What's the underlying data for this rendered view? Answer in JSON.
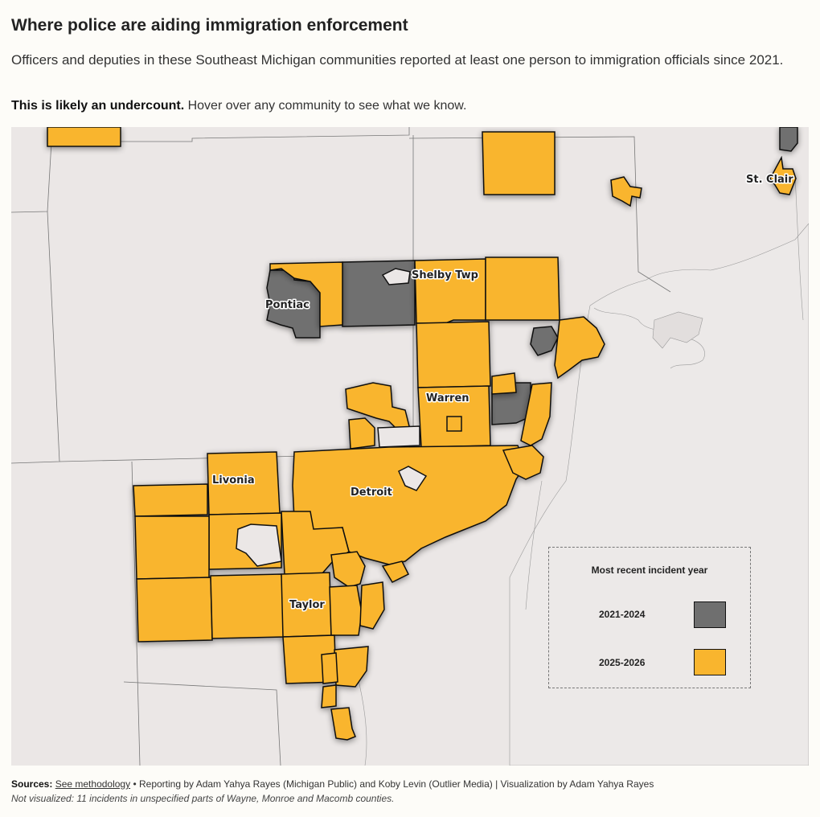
{
  "header": {
    "title": "Where police are aiding immigration enforcement",
    "subtitle": "Officers and deputies in these Southeast Michigan communities reported at least one person to immigration officials since 2021.",
    "note_bold": "This is likely an undercount.",
    "note_rest": " Hover over any community to see what we know."
  },
  "map": {
    "labels": {
      "st_clair": "St. Clair",
      "shelby_twp": "Shelby Twp",
      "pontiac": "Pontiac",
      "warren": "Warren",
      "livonia": "Livonia",
      "detroit": "Detroit",
      "taylor": "Taylor"
    },
    "colors": {
      "land": "#ebe7e6",
      "recent": "#f9b52e",
      "older": "#6f6f6f",
      "border": "#111111"
    }
  },
  "legend": {
    "title": "Most recent incident year",
    "items": [
      {
        "label": "2021-2024",
        "color": "#6f6f6f"
      },
      {
        "label": "2025-2026",
        "color": "#f9b52e"
      }
    ]
  },
  "footer": {
    "sources_label": "Sources:",
    "methodology_link": "See methodology",
    "credits": " • Reporting by Adam Yahya Rayes (Michigan Public) and Koby Levin (Outlier Media) | Visualization by Adam Yahya Rayes",
    "not_visualized": "Not visualized: 11 incidents in unspecified parts of Wayne, Monroe and Macomb counties."
  }
}
